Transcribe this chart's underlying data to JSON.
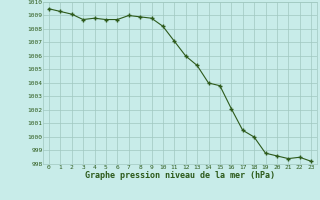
{
  "x": [
    0,
    1,
    2,
    3,
    4,
    5,
    6,
    7,
    8,
    9,
    10,
    11,
    12,
    13,
    14,
    15,
    16,
    17,
    18,
    19,
    20,
    21,
    22,
    23
  ],
  "y": [
    1009.5,
    1009.3,
    1009.1,
    1008.7,
    1008.8,
    1008.7,
    1008.7,
    1009.0,
    1008.9,
    1008.8,
    1008.2,
    1007.1,
    1006.0,
    1005.3,
    1004.0,
    1003.8,
    1002.1,
    1000.5,
    1000.0,
    998.8,
    998.6,
    998.4,
    998.5,
    998.2
  ],
  "line_color": "#2d5a1b",
  "marker": "+",
  "marker_size": 3,
  "line_width": 0.8,
  "bg_color": "#c8ece9",
  "grid_color": "#a0c8c0",
  "tick_color": "#2d5a1b",
  "label_color": "#2d5a1b",
  "xlabel": "Graphe pression niveau de la mer (hPa)",
  "xlabel_fontsize": 6.0,
  "ylim": [
    998,
    1010
  ],
  "xlim_min": -0.5,
  "xlim_max": 23.5,
  "xtick_labels": [
    "0",
    "1",
    "2",
    "3",
    "4",
    "5",
    "6",
    "7",
    "8",
    "9",
    "10",
    "11",
    "12",
    "13",
    "14",
    "15",
    "16",
    "17",
    "18",
    "19",
    "20",
    "21",
    "22",
    "23"
  ]
}
